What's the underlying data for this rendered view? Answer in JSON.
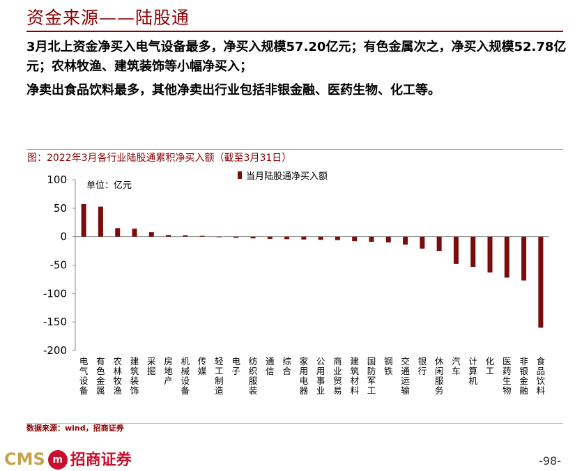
{
  "header": {
    "title": "资金来源——陆股通"
  },
  "bullets": [
    "3月北上资金净买入电气设备最多，净买入规模57.20亿元；有色金属次之，净买入规模52.78亿元；农林牧渔、建筑装饰等小幅净买入；",
    "净卖出食品饮料最多，其他净卖出行业包括非银金融、医药生物、化工等。"
  ],
  "footer": {
    "source": "数据来源：wind，招商证券",
    "logo_en": "CMS",
    "logo_mark": "m",
    "logo_cn": "招商证券",
    "page": "-98-"
  },
  "colors": {
    "accent": "#8B0000",
    "bar": "#7B0C0C",
    "logo_gold": "#C8A34B",
    "logo_red": "#C8102E"
  },
  "chart_data": {
    "type": "bar",
    "title": "图：2022年3月各行业陆股通累积净买入额（截至3月31日）",
    "unit_label": "单位：亿元",
    "legend": "当月陆股通净买入额",
    "legend_position": "top",
    "categories": [
      "电气设备",
      "有色金属",
      "农林牧渔",
      "建筑装饰",
      "采掘",
      "房地产",
      "机械设备",
      "传媒",
      "轻工制造",
      "电子",
      "纺织服装",
      "通信",
      "综合",
      "家用电器",
      "公用事业",
      "商业贸易",
      "建筑材料",
      "国防军工",
      "钢铁",
      "交通运输",
      "银行",
      "休闲服务",
      "汽车",
      "计算机",
      "化工",
      "医药生物",
      "非银金融",
      "食品饮料"
    ],
    "series": [
      {
        "name": "当月陆股通净买入额",
        "values": [
          57.2,
          52.78,
          15,
          14,
          8,
          3,
          2.5,
          1.5,
          0,
          -2,
          -3,
          -4,
          -4.5,
          -5,
          -5.5,
          -6,
          -8,
          -9,
          -10,
          -14,
          -21,
          -25,
          -48,
          -53,
          -63,
          -72,
          -77,
          -160
        ]
      }
    ],
    "ylim": [
      -200,
      100
    ],
    "yticks": [
      100,
      50,
      0,
      -50,
      -100,
      -150,
      -200
    ],
    "grid": false
  }
}
